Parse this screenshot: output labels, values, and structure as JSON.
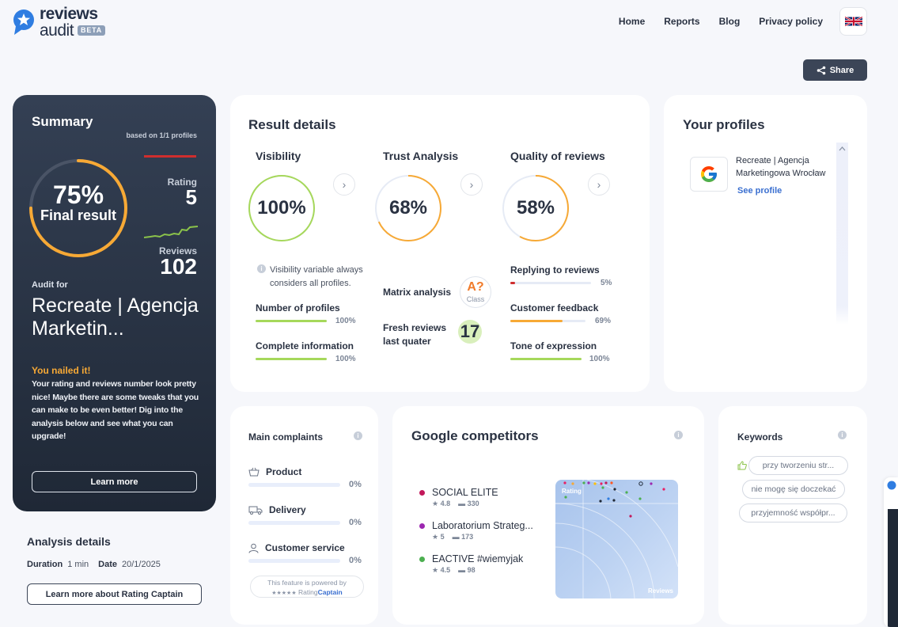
{
  "brand": {
    "line1": "reviews",
    "line2": "audit",
    "badge": "BETA"
  },
  "nav": {
    "items": [
      "Home",
      "Reports",
      "Blog",
      "Privacy policy"
    ],
    "language_icon": "uk-flag-icon"
  },
  "share_label": "Share",
  "summary": {
    "title": "Summary",
    "based_on": "based on 1/1 profiles",
    "final_pct": "75%",
    "final_label": "Final result",
    "final_value": 0.75,
    "rating_label": "Rating",
    "rating_value": "5",
    "reviews_label": "Reviews",
    "reviews_value": "102",
    "audit_for_label": "Audit for",
    "audit_name": "Recreate | Agencja Marketin...",
    "nailed_title": "You nailed it!",
    "nailed_text": "Your rating and reviews number look pretty nice! Maybe there are some tweaks that you can make to be even better! Dig into the analysis below and see what you can upgrade!",
    "learn_more": "Learn more",
    "colors": {
      "ring": "#f7a935",
      "rating_bar": "#cf2e2e",
      "spark": "#8bc34a"
    }
  },
  "analysis": {
    "title": "Analysis details",
    "duration_label": "Duration",
    "duration_value": "1 min",
    "date_label": "Date",
    "date_value": "20/1/2025",
    "button": "Learn more about Rating Captain"
  },
  "result": {
    "title": "Result details",
    "visibility": {
      "title": "Visibility",
      "pct": "100%",
      "value": 1.0,
      "info": "Visibility variable always considers all profiles.",
      "metrics": [
        {
          "label": "Number of profiles",
          "pct": "100%",
          "value": 1.0,
          "color": "#a6d85b"
        },
        {
          "label": "Complete information",
          "pct": "100%",
          "value": 1.0,
          "color": "#a6d85b"
        }
      ]
    },
    "trust": {
      "title": "Trust Analysis",
      "pct": "68%",
      "value": 0.68,
      "matrix_label": "Matrix analysis",
      "class_letter": "A?",
      "class_label": "Class",
      "fresh_label": "Fresh reviews last quater",
      "fresh_value": "17"
    },
    "quality": {
      "title": "Quality of reviews",
      "pct": "58%",
      "value": 0.58,
      "metrics": [
        {
          "label": "Replying to reviews",
          "pct": "5%",
          "value": 0.05,
          "color": "#cf2e2e"
        },
        {
          "label": "Customer feedback",
          "pct": "69%",
          "value": 0.69,
          "color": "#f7a935"
        },
        {
          "label": "Tone of expression",
          "pct": "100%",
          "value": 1.0,
          "color": "#a6d85b"
        }
      ]
    }
  },
  "profiles": {
    "title": "Your profiles",
    "items": [
      {
        "name": "Recreate | Agencja Marketingowa Wrocław",
        "link": "See profile",
        "icon": "google-icon"
      }
    ]
  },
  "complaints": {
    "title": "Main complaints",
    "items": [
      {
        "label": "Product",
        "pct": "0%",
        "icon": "basket-icon"
      },
      {
        "label": "Delivery",
        "pct": "0%",
        "icon": "truck-icon"
      },
      {
        "label": "Customer service",
        "pct": "0%",
        "icon": "person-icon"
      }
    ],
    "powered_line1": "This feature is powered by",
    "powered_stars": "★★★★★",
    "powered_brand1": "Rating",
    "powered_brand2": "Captain"
  },
  "competitors": {
    "title": "Google competitors",
    "items": [
      {
        "name": "SOCIAL ELITE",
        "rating": "4.8",
        "reviews": "330",
        "color": "#c2185b"
      },
      {
        "name": "Laboratorium Strateg...",
        "rating": "5",
        "reviews": "173",
        "color": "#9c27b0"
      },
      {
        "name": "EACTIVE #wiemyjak",
        "rating": "4.5",
        "reviews": "98",
        "color": "#4caf50"
      }
    ],
    "chart_labels": {
      "y": "Rating",
      "x": "Reviews"
    }
  },
  "keywords": {
    "title": "Keywords",
    "items": [
      "przy tworzeniu str...",
      "nie mogę się doczekać",
      "przyjemność współpr..."
    ]
  }
}
